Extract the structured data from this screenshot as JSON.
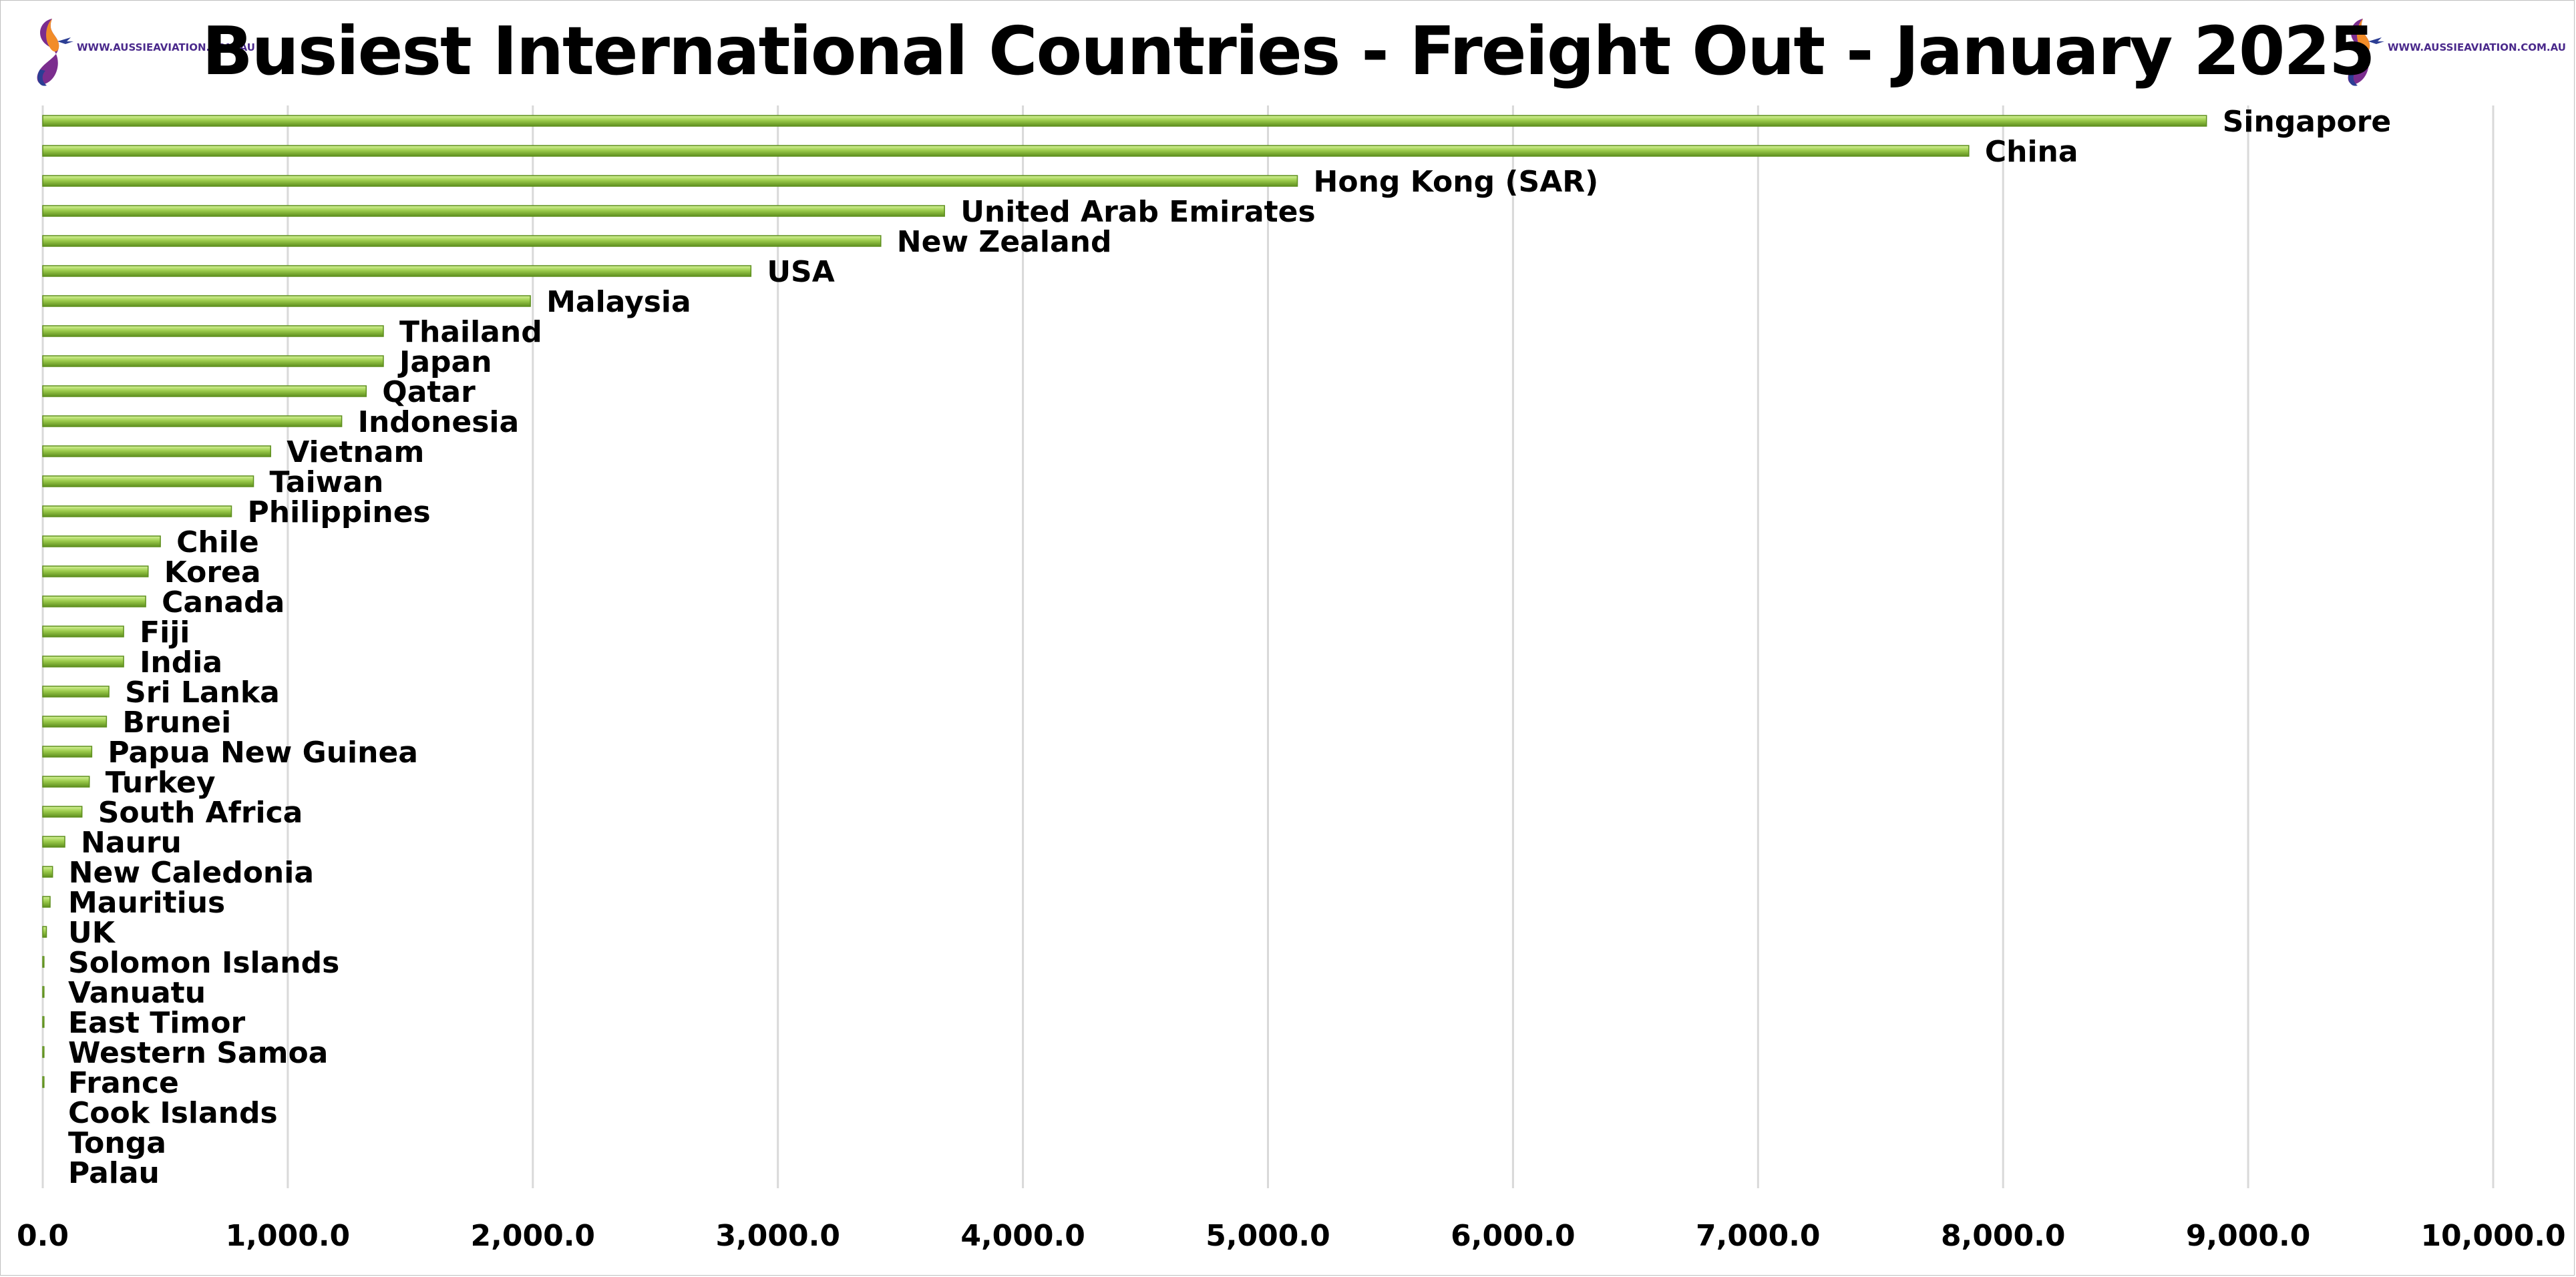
{
  "header": {
    "title": "Busiest International Countries - Freight Out - January 2025",
    "logo_url_text": "WWW.AUSSIEAVIATION.COM.AU"
  },
  "colors": {
    "bar_fill": "#9ccc4c",
    "bar_highlight": "#d6f29a",
    "bar_shadow": "#5e8f1e",
    "grid": "#d9d9d9",
    "logo_orange": "#f28c28",
    "logo_purple": "#7b2d8e",
    "logo_blue": "#2c3e94"
  },
  "chart_data": {
    "type": "bar",
    "orientation": "horizontal",
    "title": "Busiest International Countries - Freight Out - January 2025",
    "xlabel": "",
    "ylabel": "",
    "xlim": [
      0,
      10000
    ],
    "x_ticks": [
      "0.0",
      "1,000.0",
      "2,000.0",
      "3,000.0",
      "4,000.0",
      "5,000.0",
      "6,000.0",
      "7,000.0",
      "8,000.0",
      "9,000.0",
      "10,000.0"
    ],
    "x_tick_values": [
      0,
      1000,
      2000,
      3000,
      4000,
      5000,
      6000,
      7000,
      8000,
      9000,
      10000
    ],
    "grid": "vertical",
    "data_labels": "category names at bar ends",
    "categories": [
      "Singapore",
      "China",
      "Hong Kong (SAR)",
      "United Arab Emirates",
      "New Zealand",
      "USA",
      "Malaysia",
      "Thailand",
      "Japan",
      "Qatar",
      "Indonesia",
      "Vietnam",
      "Taiwan",
      "Philippines",
      "Chile",
      "Korea",
      "Canada",
      "Fiji",
      "India",
      "Sri Lanka",
      "Brunei",
      "Papua New Guinea",
      "Turkey",
      "South Africa",
      "Nauru",
      "New Caledonia",
      "Mauritius",
      "UK",
      "Solomon Islands",
      "Vanuatu",
      "East Timor",
      "Western Samoa",
      "France",
      "Cook Islands",
      "Tonga",
      "Palau"
    ],
    "values": [
      8830,
      7860,
      5120,
      3680,
      3420,
      2890,
      1990,
      1390,
      1390,
      1320,
      1220,
      930,
      860,
      770,
      480,
      430,
      420,
      330,
      330,
      270,
      260,
      200,
      190,
      160,
      90,
      40,
      30,
      15,
      5,
      5,
      5,
      5,
      5,
      0,
      0,
      0
    ]
  }
}
